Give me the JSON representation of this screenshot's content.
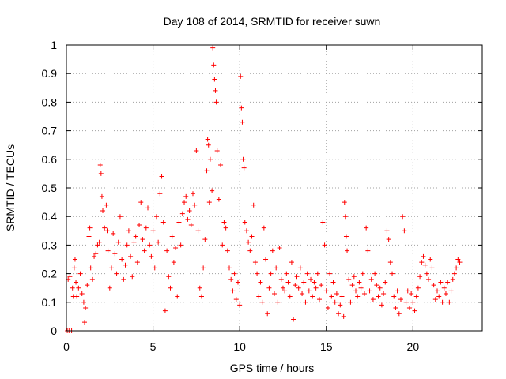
{
  "chart_data": {
    "type": "scatter",
    "title": "Day 108 of 2014, SRMTID for receiver suwn",
    "xlabel": "GPS time / hours",
    "ylabel": "SRMTID / TECUs",
    "xlim": [
      0,
      24
    ],
    "ylim": [
      0,
      1
    ],
    "xticks": [
      0,
      5,
      10,
      15,
      20
    ],
    "yticks": [
      0,
      0.1,
      0.2,
      0.3,
      0.4,
      0.5,
      0.6,
      0.7,
      0.8,
      0.9,
      1
    ],
    "xtick_labels": [
      "0",
      "5",
      "10",
      "15",
      "20"
    ],
    "ytick_labels": [
      "0",
      "0.1",
      "0.2",
      "0.3",
      "0.4",
      "0.5",
      "0.6",
      "0.7",
      "0.8",
      "0.9",
      "1"
    ],
    "grid": true,
    "marker": "+",
    "color": "#ff0000",
    "series": [
      {
        "name": "SRMTID",
        "points": [
          [
            0.05,
            0.0
          ],
          [
            0.1,
            0.18
          ],
          [
            0.15,
            0.0
          ],
          [
            0.2,
            0.19
          ],
          [
            0.3,
            0.0
          ],
          [
            0.35,
            0.15
          ],
          [
            0.4,
            0.12
          ],
          [
            0.45,
            0.22
          ],
          [
            0.5,
            0.25
          ],
          [
            0.55,
            0.17
          ],
          [
            0.6,
            0.12
          ],
          [
            0.7,
            0.15
          ],
          [
            0.8,
            0.2
          ],
          [
            0.9,
            0.13
          ],
          [
            1.0,
            0.1
          ],
          [
            1.05,
            0.03
          ],
          [
            1.1,
            0.08
          ],
          [
            1.2,
            0.16
          ],
          [
            1.3,
            0.33
          ],
          [
            1.35,
            0.36
          ],
          [
            1.4,
            0.22
          ],
          [
            1.5,
            0.18
          ],
          [
            1.6,
            0.26
          ],
          [
            1.7,
            0.27
          ],
          [
            1.8,
            0.3
          ],
          [
            1.9,
            0.31
          ],
          [
            1.95,
            0.58
          ],
          [
            2.0,
            0.55
          ],
          [
            2.05,
            0.47
          ],
          [
            2.1,
            0.42
          ],
          [
            2.2,
            0.36
          ],
          [
            2.3,
            0.44
          ],
          [
            2.35,
            0.35
          ],
          [
            2.4,
            0.28
          ],
          [
            2.5,
            0.15
          ],
          [
            2.6,
            0.22
          ],
          [
            2.7,
            0.34
          ],
          [
            2.8,
            0.27
          ],
          [
            2.9,
            0.2
          ],
          [
            3.0,
            0.31
          ],
          [
            3.1,
            0.4
          ],
          [
            3.2,
            0.25
          ],
          [
            3.3,
            0.18
          ],
          [
            3.4,
            0.23
          ],
          [
            3.5,
            0.3
          ],
          [
            3.6,
            0.35
          ],
          [
            3.7,
            0.26
          ],
          [
            3.8,
            0.19
          ],
          [
            3.9,
            0.31
          ],
          [
            4.0,
            0.33
          ],
          [
            4.1,
            0.24
          ],
          [
            4.2,
            0.37
          ],
          [
            4.3,
            0.45
          ],
          [
            4.4,
            0.32
          ],
          [
            4.5,
            0.28
          ],
          [
            4.6,
            0.36
          ],
          [
            4.7,
            0.43
          ],
          [
            4.8,
            0.3
          ],
          [
            4.9,
            0.26
          ],
          [
            5.0,
            0.35
          ],
          [
            5.1,
            0.22
          ],
          [
            5.2,
            0.4
          ],
          [
            5.3,
            0.31
          ],
          [
            5.4,
            0.48
          ],
          [
            5.5,
            0.54
          ],
          [
            5.6,
            0.38
          ],
          [
            5.7,
            0.07
          ],
          [
            5.8,
            0.28
          ],
          [
            5.9,
            0.19
          ],
          [
            6.0,
            0.15
          ],
          [
            6.1,
            0.33
          ],
          [
            6.2,
            0.24
          ],
          [
            6.3,
            0.29
          ],
          [
            6.4,
            0.12
          ],
          [
            6.5,
            0.38
          ],
          [
            6.6,
            0.3
          ],
          [
            6.7,
            0.41
          ],
          [
            6.8,
            0.45
          ],
          [
            6.9,
            0.47
          ],
          [
            7.0,
            0.39
          ],
          [
            7.1,
            0.42
          ],
          [
            7.2,
            0.37
          ],
          [
            7.3,
            0.48
          ],
          [
            7.4,
            0.44
          ],
          [
            7.5,
            0.63
          ],
          [
            7.6,
            0.35
          ],
          [
            7.7,
            0.15
          ],
          [
            7.8,
            0.12
          ],
          [
            7.9,
            0.22
          ],
          [
            8.0,
            0.32
          ],
          [
            8.1,
            0.56
          ],
          [
            8.15,
            0.67
          ],
          [
            8.2,
            0.65
          ],
          [
            8.25,
            0.45
          ],
          [
            8.3,
            0.6
          ],
          [
            8.4,
            0.49
          ],
          [
            8.45,
            0.99
          ],
          [
            8.5,
            0.93
          ],
          [
            8.55,
            0.88
          ],
          [
            8.6,
            0.84
          ],
          [
            8.65,
            0.8
          ],
          [
            8.7,
            0.63
          ],
          [
            8.8,
            0.46
          ],
          [
            8.9,
            0.58
          ],
          [
            9.0,
            0.3
          ],
          [
            9.1,
            0.38
          ],
          [
            9.2,
            0.36
          ],
          [
            9.3,
            0.28
          ],
          [
            9.4,
            0.22
          ],
          [
            9.5,
            0.18
          ],
          [
            9.6,
            0.14
          ],
          [
            9.7,
            0.2
          ],
          [
            9.8,
            0.11
          ],
          [
            9.9,
            0.17
          ],
          [
            10.0,
            0.09
          ],
          [
            10.05,
            0.89
          ],
          [
            10.1,
            0.78
          ],
          [
            10.15,
            0.73
          ],
          [
            10.2,
            0.6
          ],
          [
            10.25,
            0.57
          ],
          [
            10.3,
            0.38
          ],
          [
            10.4,
            0.35
          ],
          [
            10.5,
            0.31
          ],
          [
            10.6,
            0.28
          ],
          [
            10.7,
            0.33
          ],
          [
            10.8,
            0.44
          ],
          [
            10.9,
            0.24
          ],
          [
            11.0,
            0.2
          ],
          [
            11.1,
            0.12
          ],
          [
            11.2,
            0.17
          ],
          [
            11.3,
            0.1
          ],
          [
            11.4,
            0.36
          ],
          [
            11.5,
            0.25
          ],
          [
            11.6,
            0.06
          ],
          [
            11.7,
            0.15
          ],
          [
            11.8,
            0.2
          ],
          [
            11.9,
            0.28
          ],
          [
            12.0,
            0.13
          ],
          [
            12.1,
            0.22
          ],
          [
            12.2,
            0.1
          ],
          [
            12.3,
            0.29
          ],
          [
            12.4,
            0.18
          ],
          [
            12.5,
            0.15
          ],
          [
            12.6,
            0.14
          ],
          [
            12.7,
            0.2
          ],
          [
            12.8,
            0.17
          ],
          [
            12.9,
            0.12
          ],
          [
            13.0,
            0.24
          ],
          [
            13.1,
            0.04
          ],
          [
            13.2,
            0.16
          ],
          [
            13.3,
            0.19
          ],
          [
            13.4,
            0.15
          ],
          [
            13.5,
            0.22
          ],
          [
            13.6,
            0.13
          ],
          [
            13.7,
            0.17
          ],
          [
            13.8,
            0.1
          ],
          [
            13.9,
            0.2
          ],
          [
            14.0,
            0.14
          ],
          [
            14.1,
            0.18
          ],
          [
            14.2,
            0.12
          ],
          [
            14.3,
            0.17
          ],
          [
            14.4,
            0.15
          ],
          [
            14.5,
            0.2
          ],
          [
            14.6,
            0.11
          ],
          [
            14.7,
            0.16
          ],
          [
            14.8,
            0.38
          ],
          [
            14.9,
            0.3
          ],
          [
            15.0,
            0.14
          ],
          [
            15.1,
            0.08
          ],
          [
            15.2,
            0.2
          ],
          [
            15.3,
            0.12
          ],
          [
            15.4,
            0.17
          ],
          [
            15.5,
            0.1
          ],
          [
            15.6,
            0.13
          ],
          [
            15.7,
            0.06
          ],
          [
            15.8,
            0.09
          ],
          [
            15.9,
            0.12
          ],
          [
            16.0,
            0.05
          ],
          [
            16.05,
            0.45
          ],
          [
            16.1,
            0.4
          ],
          [
            16.15,
            0.33
          ],
          [
            16.2,
            0.28
          ],
          [
            16.3,
            0.18
          ],
          [
            16.4,
            0.1
          ],
          [
            16.5,
            0.16
          ],
          [
            16.6,
            0.19
          ],
          [
            16.7,
            0.14
          ],
          [
            16.8,
            0.12
          ],
          [
            16.9,
            0.17
          ],
          [
            17.0,
            0.15
          ],
          [
            17.1,
            0.2
          ],
          [
            17.2,
            0.13
          ],
          [
            17.3,
            0.36
          ],
          [
            17.4,
            0.28
          ],
          [
            17.5,
            0.14
          ],
          [
            17.6,
            0.18
          ],
          [
            17.7,
            0.11
          ],
          [
            17.8,
            0.2
          ],
          [
            17.9,
            0.16
          ],
          [
            18.0,
            0.12
          ],
          [
            18.1,
            0.15
          ],
          [
            18.2,
            0.09
          ],
          [
            18.3,
            0.13
          ],
          [
            18.4,
            0.17
          ],
          [
            18.5,
            0.35
          ],
          [
            18.6,
            0.32
          ],
          [
            18.7,
            0.24
          ],
          [
            18.8,
            0.2
          ],
          [
            18.9,
            0.12
          ],
          [
            19.0,
            0.08
          ],
          [
            19.1,
            0.14
          ],
          [
            19.2,
            0.06
          ],
          [
            19.3,
            0.11
          ],
          [
            19.4,
            0.4
          ],
          [
            19.5,
            0.35
          ],
          [
            19.6,
            0.1
          ],
          [
            19.7,
            0.14
          ],
          [
            19.8,
            0.08
          ],
          [
            19.9,
            0.13
          ],
          [
            20.0,
            0.1
          ],
          [
            20.1,
            0.07
          ],
          [
            20.2,
            0.12
          ],
          [
            20.3,
            0.15
          ],
          [
            20.4,
            0.19
          ],
          [
            20.5,
            0.24
          ],
          [
            20.6,
            0.26
          ],
          [
            20.7,
            0.23
          ],
          [
            20.8,
            0.2
          ],
          [
            20.9,
            0.18
          ],
          [
            21.0,
            0.25
          ],
          [
            21.1,
            0.22
          ],
          [
            21.2,
            0.16
          ],
          [
            21.3,
            0.11
          ],
          [
            21.4,
            0.14
          ],
          [
            21.5,
            0.12
          ],
          [
            21.6,
            0.17
          ],
          [
            21.7,
            0.1
          ],
          [
            21.8,
            0.15
          ],
          [
            21.9,
            0.13
          ],
          [
            22.0,
            0.17
          ],
          [
            22.1,
            0.1
          ],
          [
            22.2,
            0.14
          ],
          [
            22.3,
            0.18
          ],
          [
            22.4,
            0.2
          ],
          [
            22.5,
            0.22
          ],
          [
            22.6,
            0.25
          ],
          [
            22.7,
            0.24
          ]
        ]
      }
    ]
  }
}
